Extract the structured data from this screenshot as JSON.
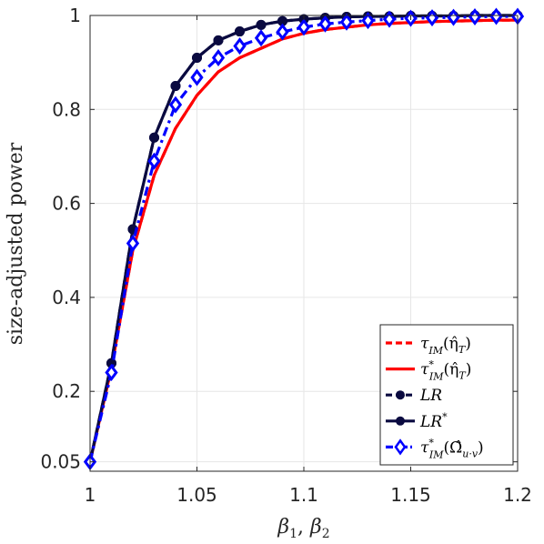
{
  "chart_data": {
    "type": "line",
    "xlabel": "β₁, β₂",
    "ylabel": "size-adjusted power",
    "xlim": [
      1,
      1.2
    ],
    "ylim": [
      0.03,
      1
    ],
    "xticks": [
      1,
      1.05,
      1.1,
      1.15,
      1.2
    ],
    "xtick_labels": [
      "1",
      "1.05",
      "1.1",
      "1.15",
      "1.2"
    ],
    "yticks": [
      0.05,
      0.2,
      0.4,
      0.6,
      0.8,
      1
    ],
    "ytick_labels": [
      "0.05",
      "0.2",
      "0.4",
      "0.6",
      "0.8",
      "1"
    ],
    "grid": true,
    "legend_position": "bottom-right",
    "x": [
      1,
      1.01,
      1.02,
      1.03,
      1.04,
      1.05,
      1.06,
      1.07,
      1.08,
      1.09,
      1.1,
      1.11,
      1.12,
      1.13,
      1.14,
      1.15,
      1.16,
      1.17,
      1.18,
      1.19,
      1.2
    ],
    "series": [
      {
        "name": "τ_IM(η̂_T)",
        "color": "#ff0000",
        "style": "dashed",
        "marker": "none",
        "values": [
          0.05,
          0.25,
          0.5,
          0.66,
          0.76,
          0.83,
          0.88,
          0.91,
          0.93,
          0.95,
          0.962,
          0.97,
          0.975,
          0.98,
          0.983,
          0.985,
          0.987,
          0.988,
          0.989,
          0.99,
          0.99
        ]
      },
      {
        "name": "τ*_IM(η̂_T)",
        "color": "#ff0000",
        "style": "solid",
        "marker": "none",
        "values": [
          0.05,
          0.25,
          0.5,
          0.66,
          0.76,
          0.83,
          0.88,
          0.91,
          0.93,
          0.95,
          0.962,
          0.97,
          0.975,
          0.98,
          0.983,
          0.985,
          0.987,
          0.988,
          0.989,
          0.99,
          0.99
        ]
      },
      {
        "name": "LR",
        "color": "#0a0a40",
        "style": "dashed",
        "marker": "circle",
        "values": [
          0.05,
          0.26,
          0.545,
          0.74,
          0.85,
          0.91,
          0.947,
          0.966,
          0.98,
          0.988,
          0.992,
          0.995,
          0.997,
          0.998,
          0.998,
          0.999,
          0.999,
          0.999,
          1,
          1,
          1
        ]
      },
      {
        "name": "LR*",
        "color": "#0a0a40",
        "style": "solid",
        "marker": "circle",
        "values": [
          0.05,
          0.26,
          0.545,
          0.74,
          0.85,
          0.91,
          0.947,
          0.966,
          0.98,
          0.988,
          0.992,
          0.995,
          0.997,
          0.998,
          0.998,
          0.999,
          0.999,
          0.999,
          1,
          1,
          1
        ]
      },
      {
        "name": "τ*_IM(Ω̂_u·v)",
        "color": "#0000ff",
        "style": "dashdot",
        "marker": "diamond",
        "values": [
          0.05,
          0.24,
          0.515,
          0.69,
          0.81,
          0.868,
          0.91,
          0.935,
          0.952,
          0.965,
          0.975,
          0.982,
          0.986,
          0.989,
          0.992,
          0.994,
          0.995,
          0.996,
          0.997,
          0.998,
          0.998
        ]
      }
    ]
  },
  "legend": {
    "entries": [
      {
        "base": "τ",
        "sub": "IM",
        "sup": "",
        "arg": "(η̂",
        "argsub": "T",
        "close": ")"
      },
      {
        "base": "τ",
        "sub": "IM",
        "sup": "*",
        "arg": "(η̂",
        "argsub": "T",
        "close": ")"
      },
      {
        "base": "LR",
        "sub": "",
        "sup": "",
        "arg": "",
        "argsub": "",
        "close": ""
      },
      {
        "base": "LR",
        "sub": "",
        "sup": "*",
        "arg": "",
        "argsub": "",
        "close": ""
      },
      {
        "base": "τ",
        "sub": "IM",
        "sup": "*",
        "arg": "(Ω̂",
        "argsub": "u·v",
        "close": ")"
      }
    ]
  },
  "xlabel_parts": {
    "b1": "β",
    "s1": "1",
    "sep": ", ",
    "b2": "β",
    "s2": "2"
  }
}
